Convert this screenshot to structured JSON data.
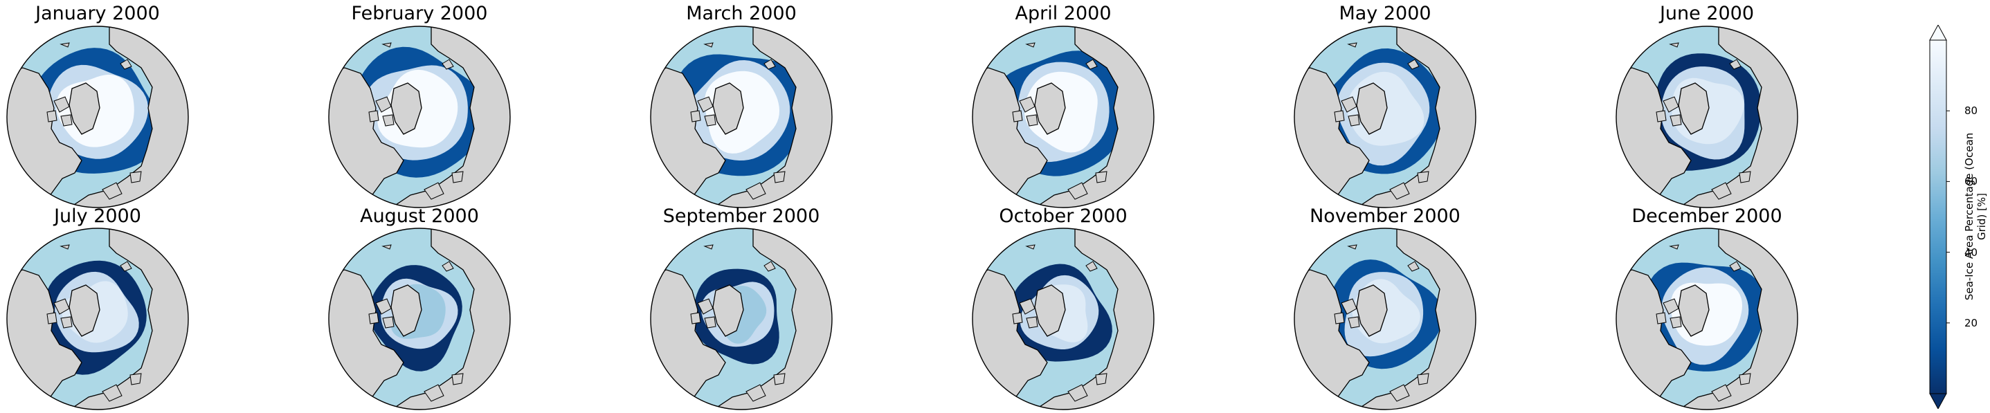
{
  "panels": [
    {
      "title": "January 2000",
      "sea_ice_extent_level": 0.95,
      "inner_ice_level": 0.95,
      "margin_intensity": 0.55
    },
    {
      "title": "February 2000",
      "sea_ice_extent_level": 1.0,
      "inner_ice_level": 0.97,
      "margin_intensity": 0.6
    },
    {
      "title": "March 2000",
      "sea_ice_extent_level": 1.0,
      "inner_ice_level": 0.97,
      "margin_intensity": 0.65
    },
    {
      "title": "April 2000",
      "sea_ice_extent_level": 0.98,
      "inner_ice_level": 0.96,
      "margin_intensity": 0.65
    },
    {
      "title": "May 2000",
      "sea_ice_extent_level": 0.93,
      "inner_ice_level": 0.93,
      "margin_intensity": 0.75
    },
    {
      "title": "June 2000",
      "sea_ice_extent_level": 0.85,
      "inner_ice_level": 0.88,
      "margin_intensity": 0.85
    },
    {
      "title": "July 2000",
      "sea_ice_extent_level": 0.72,
      "inner_ice_level": 0.82,
      "margin_intensity": 0.95
    },
    {
      "title": "August 2000",
      "sea_ice_extent_level": 0.6,
      "inner_ice_level": 0.6,
      "margin_intensity": 1.0
    },
    {
      "title": "September 2000",
      "sea_ice_extent_level": 0.55,
      "inner_ice_level": 0.65,
      "margin_intensity": 1.0
    },
    {
      "title": "October 2000",
      "sea_ice_extent_level": 0.62,
      "inner_ice_level": 0.85,
      "margin_intensity": 0.9
    },
    {
      "title": "November 2000",
      "sea_ice_extent_level": 0.75,
      "inner_ice_level": 0.93,
      "margin_intensity": 0.75
    },
    {
      "title": "December 2000",
      "sea_ice_extent_level": 0.85,
      "inner_ice_level": 0.95,
      "margin_intensity": 0.65
    }
  ],
  "colorbar": {
    "label": "Sea-Ice Area Percentage (Ocean Grid) [%]",
    "ticks": [
      "20",
      "40",
      "60",
      "80"
    ],
    "range": [
      0,
      100
    ],
    "extend": "both",
    "colormap": [
      "#08306b",
      "#08519c",
      "#2171b5",
      "#4292c6",
      "#6baed6",
      "#9ecae1",
      "#c6dbef",
      "#deebf7",
      "#f7fbff"
    ]
  },
  "colors": {
    "ocean": "#add8e6",
    "land": "#d3d3d3",
    "coastline": "#000000"
  }
}
